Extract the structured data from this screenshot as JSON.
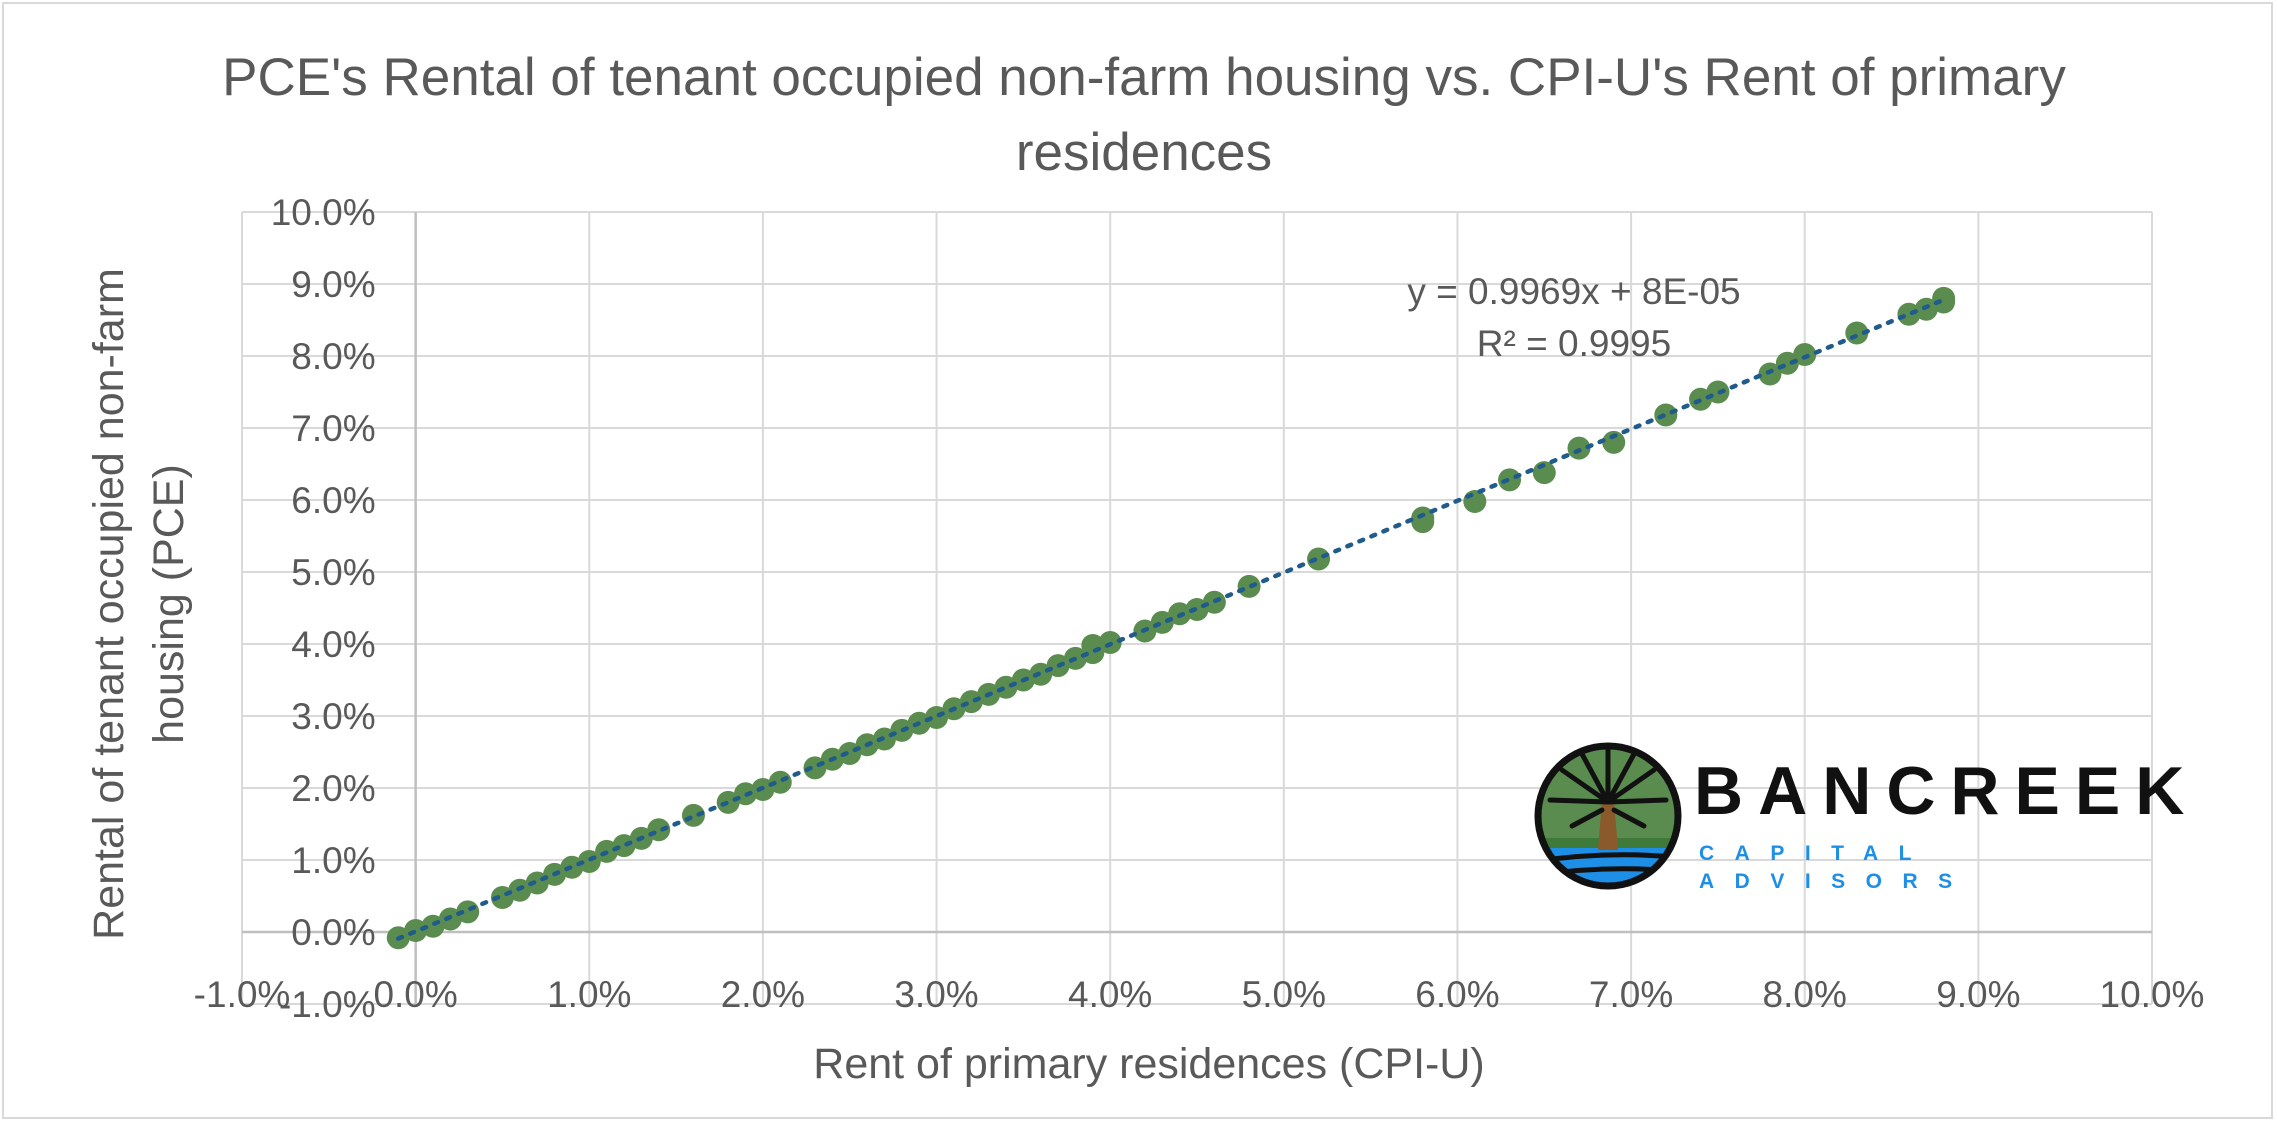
{
  "chart_data": {
    "type": "scatter",
    "title": "PCE's Rental of tenant occupied non-farm housing vs. CPI-U's Rent of primary residences",
    "xlabel": "Rent of primary residences (CPI-U)",
    "ylabel": "Rental of tenant occupied non-farm housing (PCE)",
    "xlim": [
      -0.01,
      0.1
    ],
    "ylim": [
      -0.01,
      0.1
    ],
    "x_ticks": [
      "-1.0%",
      "0.0%",
      "1.0%",
      "2.0%",
      "3.0%",
      "4.0%",
      "5.0%",
      "6.0%",
      "7.0%",
      "8.0%",
      "9.0%",
      "10.0%"
    ],
    "y_ticks": [
      "-1.0%",
      "0.0%",
      "1.0%",
      "2.0%",
      "3.0%",
      "4.0%",
      "5.0%",
      "6.0%",
      "7.0%",
      "8.0%",
      "9.0%",
      "10.0%"
    ],
    "grid": true,
    "point_color": "#5b8c4f",
    "trendline": {
      "style": "dotted",
      "color": "#1f5c8c",
      "slope": 0.9969,
      "intercept": 8e-05,
      "equation": "y = 0.9969x + 8E-05",
      "r2_label": "R² = 0.9995"
    },
    "points": [
      [
        -0.001,
        -0.0008
      ],
      [
        0.0,
        0.0002
      ],
      [
        0.001,
        0.0008
      ],
      [
        0.002,
        0.0018
      ],
      [
        0.003,
        0.0028
      ],
      [
        0.005,
        0.0048
      ],
      [
        0.006,
        0.0058
      ],
      [
        0.007,
        0.0068
      ],
      [
        0.008,
        0.008
      ],
      [
        0.009,
        0.009
      ],
      [
        0.01,
        0.0098
      ],
      [
        0.011,
        0.0112
      ],
      [
        0.012,
        0.012
      ],
      [
        0.013,
        0.013
      ],
      [
        0.014,
        0.0142
      ],
      [
        0.016,
        0.0162
      ],
      [
        0.018,
        0.018
      ],
      [
        0.019,
        0.0192
      ],
      [
        0.02,
        0.0198
      ],
      [
        0.021,
        0.0208
      ],
      [
        0.023,
        0.0228
      ],
      [
        0.024,
        0.024
      ],
      [
        0.025,
        0.0248
      ],
      [
        0.026,
        0.026
      ],
      [
        0.027,
        0.0268
      ],
      [
        0.028,
        0.028
      ],
      [
        0.029,
        0.029
      ],
      [
        0.03,
        0.0298
      ],
      [
        0.031,
        0.031
      ],
      [
        0.032,
        0.032
      ],
      [
        0.033,
        0.033
      ],
      [
        0.034,
        0.034
      ],
      [
        0.035,
        0.035
      ],
      [
        0.036,
        0.0358
      ],
      [
        0.037,
        0.037
      ],
      [
        0.038,
        0.038
      ],
      [
        0.039,
        0.0388
      ],
      [
        0.039,
        0.0398
      ],
      [
        0.04,
        0.0402
      ],
      [
        0.042,
        0.0418
      ],
      [
        0.043,
        0.043
      ],
      [
        0.044,
        0.0442
      ],
      [
        0.045,
        0.0448
      ],
      [
        0.046,
        0.0458
      ],
      [
        0.048,
        0.048
      ],
      [
        0.052,
        0.0518
      ],
      [
        0.058,
        0.057
      ],
      [
        0.058,
        0.0575
      ],
      [
        0.061,
        0.0598
      ],
      [
        0.063,
        0.0628
      ],
      [
        0.065,
        0.0638
      ],
      [
        0.067,
        0.0672
      ],
      [
        0.069,
        0.068
      ],
      [
        0.072,
        0.0718
      ],
      [
        0.074,
        0.074
      ],
      [
        0.075,
        0.075
      ],
      [
        0.078,
        0.0775
      ],
      [
        0.079,
        0.079
      ],
      [
        0.08,
        0.0802
      ],
      [
        0.083,
        0.0832
      ],
      [
        0.086,
        0.0858
      ],
      [
        0.087,
        0.0865
      ],
      [
        0.088,
        0.0875
      ],
      [
        0.088,
        0.088
      ]
    ]
  },
  "logo": {
    "name": "BANCREEK",
    "tagline": "CAPITAL ADVISORS"
  }
}
